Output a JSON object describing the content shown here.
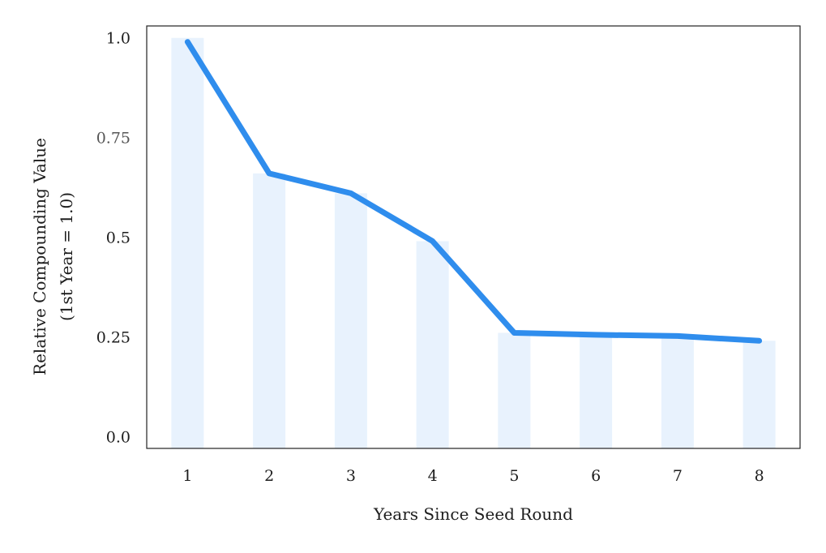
{
  "chart_data": {
    "type": "line",
    "x": [
      1,
      2,
      3,
      4,
      5,
      6,
      7,
      8
    ],
    "x_tick_labels": [
      "1",
      "2",
      "3",
      "4",
      "5",
      "6",
      "7",
      "8"
    ],
    "y_tick_values": [
      0.0,
      0.25,
      0.5,
      0.75,
      1.0
    ],
    "y_tick_labels": [
      "0.0",
      "0.25",
      "0.5",
      "0.75",
      "1.0"
    ],
    "series": [
      {
        "values": [
          0.99,
          0.66,
          0.61,
          0.49,
          0.26,
          0.255,
          0.252,
          0.24
        ]
      }
    ],
    "bars": [
      1.0,
      0.66,
      0.61,
      0.49,
      0.26,
      0.255,
      0.252,
      0.24
    ],
    "xlabel": "Years Since Seed Round",
    "ylabel_line1": "Relative Compounding  Value",
    "ylabel_line2": "(1st Year = 1.0)",
    "xlim": [
      0.5,
      8.5
    ],
    "ylim": [
      -0.03,
      1.03
    ],
    "grid": false,
    "colors": {
      "line": "#2f8ded",
      "bar": "#e8f2fd",
      "frame": "#222222"
    }
  }
}
